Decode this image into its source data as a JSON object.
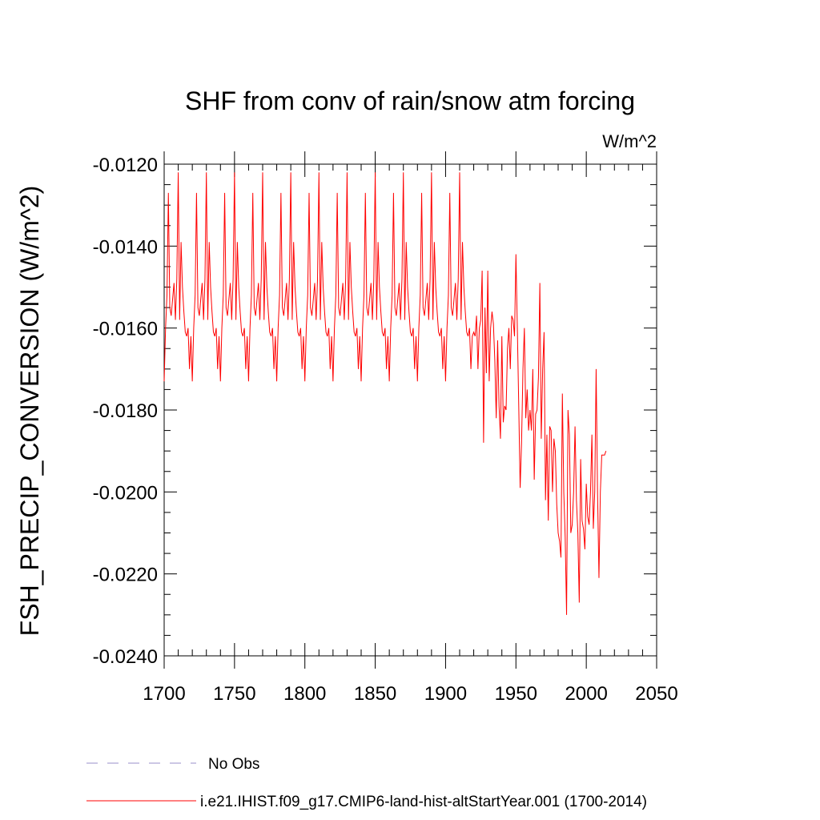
{
  "chart_data": {
    "type": "line",
    "title": "SHF from conv of rain/snow atm forcing",
    "units": "W/m^2",
    "ylabel": "FSH_PRECIP_CONVERSION  (W/m^2)",
    "xlabel": "",
    "xlim": [
      1700,
      2050
    ],
    "ylim": [
      -0.024,
      -0.012
    ],
    "x_ticks": [
      1700,
      1750,
      1800,
      1850,
      1900,
      1950,
      2000,
      2050
    ],
    "x_tick_labels": [
      "1700",
      "1750",
      "1800",
      "1850",
      "1900",
      "1950",
      "2000",
      "2050"
    ],
    "y_ticks": [
      -0.012,
      -0.014,
      -0.016,
      -0.018,
      -0.02,
      -0.022,
      -0.024
    ],
    "y_tick_labels": [
      "-0.0120",
      "-0.0140",
      "-0.0160",
      "-0.0180",
      "-0.0200",
      "-0.0220",
      "-0.0240"
    ],
    "grid": false,
    "legend_position": "bottom",
    "series": [
      {
        "name": "No Obs",
        "color": "#9a8fc8",
        "dash": "dashed",
        "x": [],
        "values": []
      },
      {
        "name": "i.e21.IHIST.f09_g17.CMIP6-land-hist-altStartYear.001 (1700-2014)",
        "color": "#ff0000",
        "dash": "solid",
        "cycle": {
          "start_year": 1700,
          "period": 20,
          "repeat_until": 1919,
          "values": [
            -0.0173,
            -0.016,
            -0.0152,
            -0.0127,
            -0.0155,
            -0.0157,
            -0.0153,
            -0.0149,
            -0.0158,
            -0.0148,
            -0.0122,
            -0.0158,
            -0.0139,
            -0.015,
            -0.0156,
            -0.0161,
            -0.0162,
            -0.016,
            -0.017,
            -0.0162
          ]
        },
        "x": [
          1920,
          1921,
          1922,
          1923,
          1924,
          1925,
          1926,
          1927,
          1928,
          1929,
          1930,
          1931,
          1932,
          1933,
          1934,
          1935,
          1936,
          1937,
          1938,
          1939,
          1940,
          1941,
          1942,
          1943,
          1944,
          1945,
          1946,
          1947,
          1948,
          1949,
          1950,
          1951,
          1952,
          1953,
          1954,
          1955,
          1956,
          1957,
          1958,
          1959,
          1960,
          1961,
          1962,
          1963,
          1964,
          1965,
          1966,
          1967,
          1968,
          1969,
          1970,
          1971,
          1972,
          1973,
          1974,
          1975,
          1976,
          1977,
          1978,
          1979,
          1980,
          1981,
          1982,
          1983,
          1984,
          1985,
          1986,
          1987,
          1988,
          1989,
          1990,
          1991,
          1992,
          1993,
          1994,
          1995,
          1996,
          1997,
          1998,
          1999,
          2000,
          2001,
          2002,
          2003,
          2004,
          2005,
          2006,
          2007,
          2008,
          2009,
          2010,
          2011,
          2012,
          2013,
          2014
        ],
        "values": [
          -0.0161,
          -0.0162,
          -0.0157,
          -0.017,
          -0.016,
          -0.0158,
          -0.0146,
          -0.0188,
          -0.0155,
          -0.0171,
          -0.0146,
          -0.0173,
          -0.016,
          -0.0156,
          -0.0159,
          -0.0168,
          -0.0182,
          -0.0163,
          -0.0179,
          -0.0187,
          -0.0162,
          -0.0183,
          -0.0179,
          -0.018,
          -0.0165,
          -0.016,
          -0.017,
          -0.0157,
          -0.0158,
          -0.0162,
          -0.0142,
          -0.016,
          -0.0179,
          -0.0199,
          -0.0188,
          -0.017,
          -0.016,
          -0.0182,
          -0.0175,
          -0.0185,
          -0.018,
          -0.0185,
          -0.017,
          -0.0197,
          -0.0181,
          -0.018,
          -0.0172,
          -0.0149,
          -0.0187,
          -0.017,
          -0.0161,
          -0.0202,
          -0.0186,
          -0.0207,
          -0.0184,
          -0.0185,
          -0.02,
          -0.0187,
          -0.019,
          -0.0203,
          -0.021,
          -0.0212,
          -0.0216,
          -0.0176,
          -0.02,
          -0.0211,
          -0.023,
          -0.018,
          -0.0186,
          -0.021,
          -0.0208,
          -0.02,
          -0.0184,
          -0.0202,
          -0.021,
          -0.0227,
          -0.0192,
          -0.0207,
          -0.0209,
          -0.0214,
          -0.0198,
          -0.0206,
          -0.0208,
          -0.02,
          -0.0186,
          -0.0209,
          -0.02,
          -0.017,
          -0.02,
          -0.0221,
          -0.02,
          -0.0191,
          -0.0191,
          -0.0191,
          -0.019
        ]
      }
    ]
  }
}
